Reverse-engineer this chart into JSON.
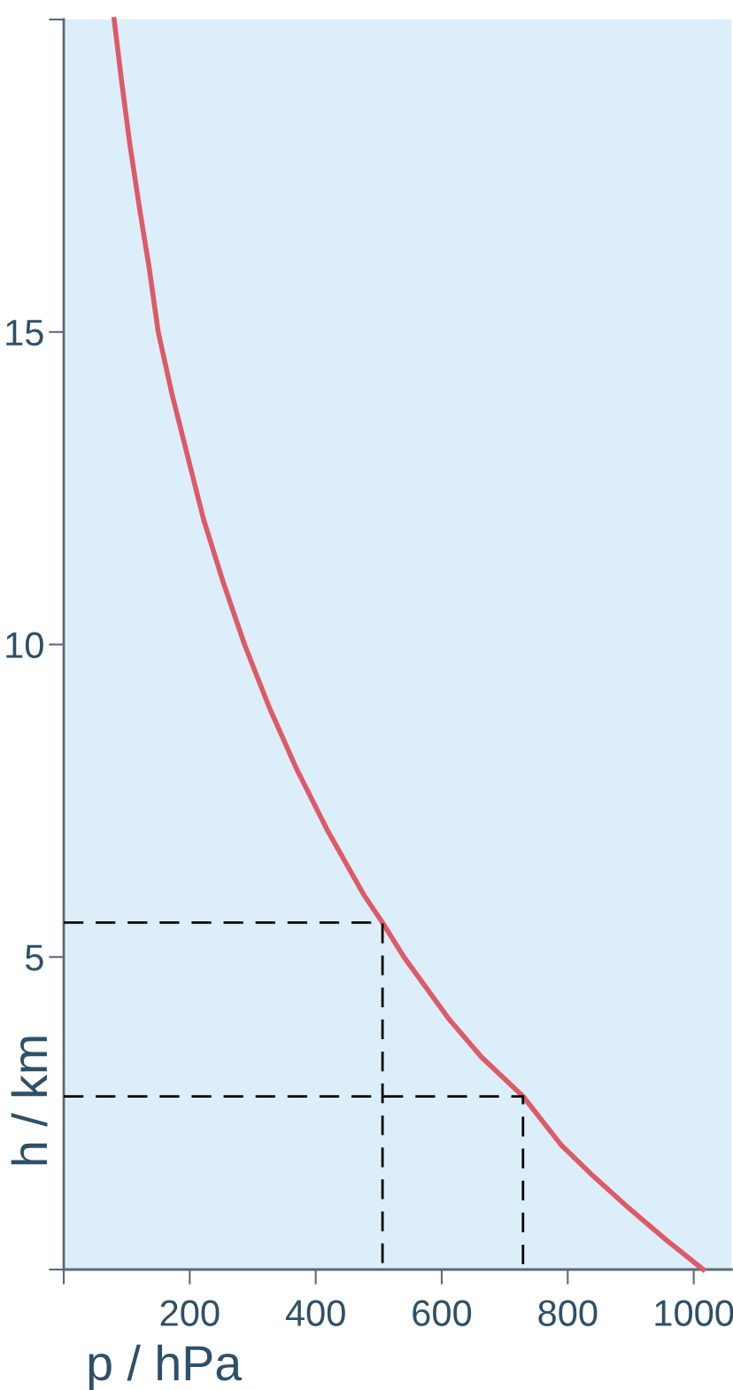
{
  "chart_data": {
    "type": "line",
    "xlabel": "p / hPa",
    "ylabel": "h / km",
    "series": [
      {
        "color": "#dd5a66",
        "line_style": "solid",
        "x": [
          80,
          92,
          105,
          120,
          136,
          150,
          172,
          197,
          222,
          253,
          287,
          326,
          370,
          420,
          476,
          506,
          540,
          612,
          663,
          729,
          789,
          840,
          895,
          953,
          1015
        ],
        "values": [
          20,
          19,
          18,
          17,
          16,
          15,
          14,
          13,
          12,
          11,
          10,
          9,
          8,
          7,
          6,
          5.55,
          5,
          4,
          3.4,
          2.77,
          2,
          1.5,
          1,
          0.5,
          0
        ]
      },
      {
        "color": "#000000",
        "line_style": "dashed",
        "x": [
          0,
          506,
          506
        ],
        "values": [
          5.55,
          5.55,
          0
        ]
      },
      {
        "color": "#000000",
        "line_style": "dashed",
        "x": [
          0,
          729,
          729
        ],
        "values": [
          2.77,
          2.77,
          0
        ]
      }
    ],
    "xlim": [
      0,
      1060
    ],
    "ylim": [
      0,
      20
    ],
    "xticks": [
      {
        "value": 0,
        "label": null
      },
      200,
      400,
      600,
      800,
      1000
    ],
    "yticks": [
      {
        "value": 0,
        "label": null
      },
      5,
      10,
      15,
      {
        "value": 20,
        "label": null
      }
    ],
    "grid": false,
    "legend": false,
    "marker": "none"
  }
}
